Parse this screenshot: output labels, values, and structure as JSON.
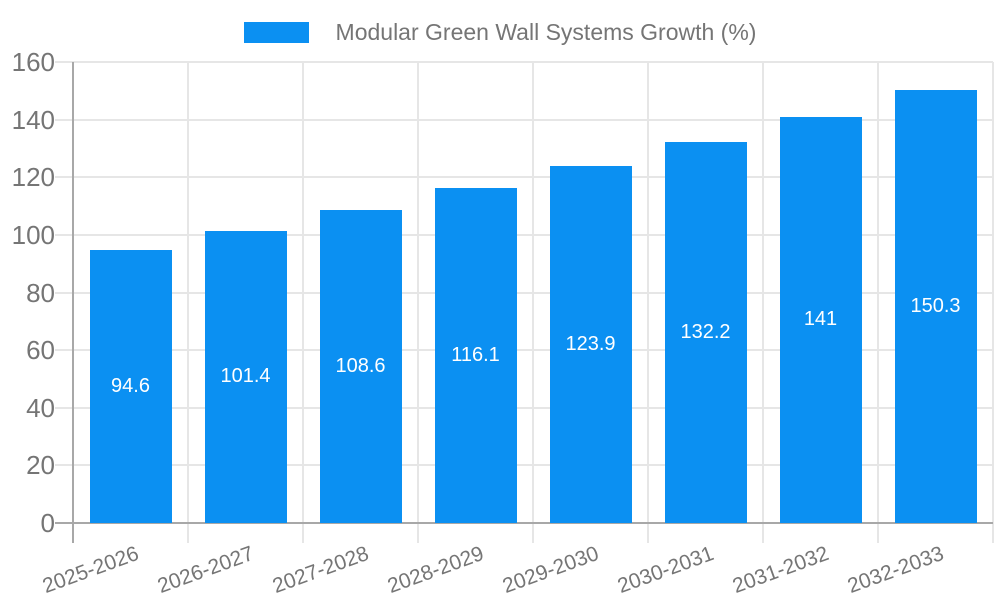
{
  "legend": {
    "label": "Modular Green Wall Systems Growth (%)"
  },
  "colors": {
    "bar": "#0b90f2",
    "grid": "#e6e6e6",
    "axis": "#a8a8a8",
    "text": "#757575",
    "bar_label": "#ffffff",
    "background": "#ffffff"
  },
  "chart_data": {
    "type": "bar",
    "title": "",
    "legend_entries": [
      "Modular Green Wall Systems Growth (%)"
    ],
    "legend_position": "top-center",
    "categories": [
      "2025-2026",
      "2026-2027",
      "2027-2028",
      "2028-2029",
      "2029-2030",
      "2030-2031",
      "2031-2032",
      "2032-2033"
    ],
    "values": [
      94.6,
      101.4,
      108.6,
      116.1,
      123.9,
      132.2,
      141,
      150.3
    ],
    "value_labels": [
      "94.6",
      "101.4",
      "108.6",
      "116.1",
      "123.9",
      "132.2",
      "141",
      "150.3"
    ],
    "xlabel": "",
    "ylabel": "",
    "ylim": [
      0,
      160
    ],
    "yticks": [
      0,
      20,
      40,
      60,
      80,
      100,
      120,
      140,
      160
    ],
    "grid": true,
    "x_label_rotation_deg": -20,
    "value_label_position": "center-inside",
    "bar_color": "#0b90f2"
  }
}
